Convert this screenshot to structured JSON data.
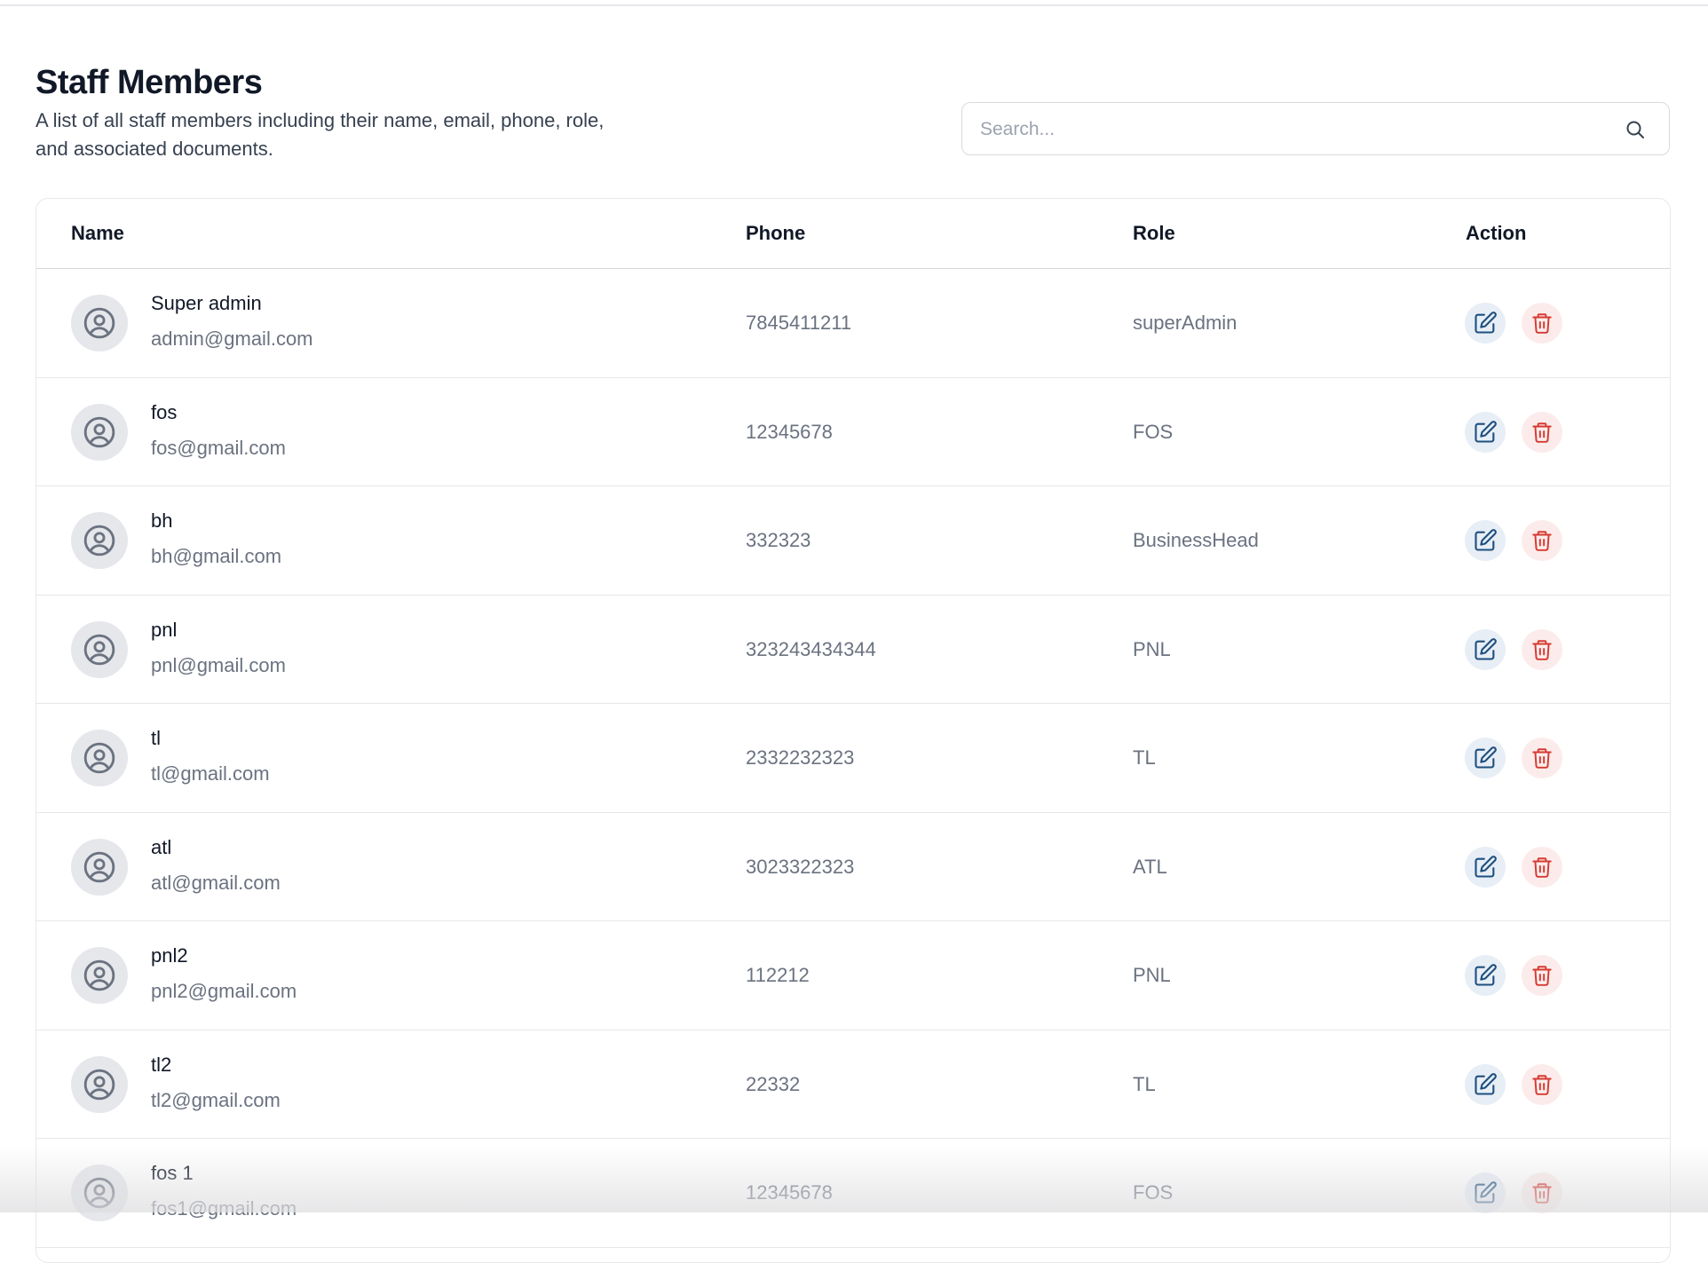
{
  "page": {
    "title": "Staff Members",
    "description": "A list of all staff members including their name, email, phone, role, and associated documents."
  },
  "search": {
    "placeholder": "Search...",
    "value": "",
    "icon": "search-icon"
  },
  "table": {
    "columns": {
      "name": "Name",
      "phone": "Phone",
      "role": "Role",
      "action": "Action"
    },
    "rows": [
      {
        "name": "Super admin",
        "email": "admin@gmail.com",
        "phone": "7845411211",
        "role": "superAdmin"
      },
      {
        "name": "fos",
        "email": "fos@gmail.com",
        "phone": "12345678",
        "role": "FOS"
      },
      {
        "name": "bh",
        "email": "bh@gmail.com",
        "phone": "332323",
        "role": "BusinessHead"
      },
      {
        "name": "pnl",
        "email": "pnl@gmail.com",
        "phone": "323243434344",
        "role": "PNL"
      },
      {
        "name": "tl",
        "email": "tl@gmail.com",
        "phone": "2332232323",
        "role": "TL"
      },
      {
        "name": "atl",
        "email": "atl@gmail.com",
        "phone": "3023322323",
        "role": "ATL"
      },
      {
        "name": "pnl2",
        "email": "pnl2@gmail.com",
        "phone": "112212",
        "role": "PNL"
      },
      {
        "name": "tl2",
        "email": "tl2@gmail.com",
        "phone": "22332",
        "role": "TL"
      },
      {
        "name": "fos 1",
        "email": "fos1@gmail.com",
        "phone": "12345678",
        "role": "FOS"
      }
    ]
  },
  "colors": {
    "edit": "#1e4f7e",
    "edit_bg": "#e7eef6",
    "delete": "#d63a32",
    "delete_bg": "#fbeceb",
    "avatar_bg": "#e5e7eb",
    "avatar_icon": "#6b7280"
  }
}
